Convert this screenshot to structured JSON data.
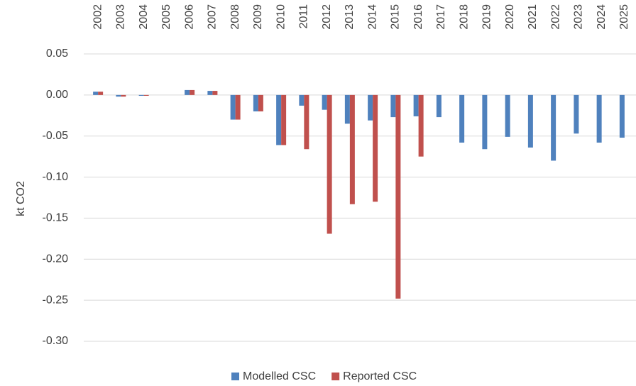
{
  "chart_data": {
    "type": "bar",
    "y_label": "kt CO2",
    "categories": [
      "2002",
      "2003",
      "2004",
      "2005",
      "2006",
      "2007",
      "2008",
      "2009",
      "2010",
      "2011",
      "2012",
      "2013",
      "2014",
      "2015",
      "2016",
      "2017",
      "2018",
      "2019",
      "2020",
      "2021",
      "2022",
      "2023",
      "2024",
      "2025"
    ],
    "series": [
      {
        "name": "Modelled CSC",
        "color": "#4f81bd",
        "values": [
          0.004,
          -0.002,
          -0.001,
          0,
          0.006,
          0.005,
          -0.03,
          -0.02,
          -0.061,
          -0.013,
          -0.018,
          -0.035,
          -0.031,
          -0.027,
          -0.026,
          -0.027,
          -0.058,
          -0.066,
          -0.051,
          -0.064,
          -0.08,
          -0.047,
          -0.058,
          -0.052
        ]
      },
      {
        "name": "Reported CSC",
        "color": "#c0504d",
        "values": [
          0.004,
          -0.002,
          -0.001,
          0,
          0.006,
          0.005,
          -0.03,
          -0.02,
          -0.061,
          -0.066,
          -0.169,
          -0.133,
          -0.13,
          -0.248,
          -0.075,
          null,
          null,
          null,
          null,
          null,
          null,
          null,
          null,
          null
        ]
      }
    ],
    "ylim": [
      -0.3,
      0.05
    ],
    "yticks": [
      {
        "value": 0.05,
        "label": "0.05"
      },
      {
        "value": 0,
        "label": "0.00"
      },
      {
        "value": -0.05,
        "label": "-0.05"
      },
      {
        "value": -0.1,
        "label": "-0.10"
      },
      {
        "value": -0.15,
        "label": "-0.15"
      },
      {
        "value": -0.2,
        "label": "-0.20"
      },
      {
        "value": -0.25,
        "label": "-0.25"
      },
      {
        "value": -0.3,
        "label": "-0.30"
      }
    ],
    "grid": true,
    "legend": "bottom"
  }
}
